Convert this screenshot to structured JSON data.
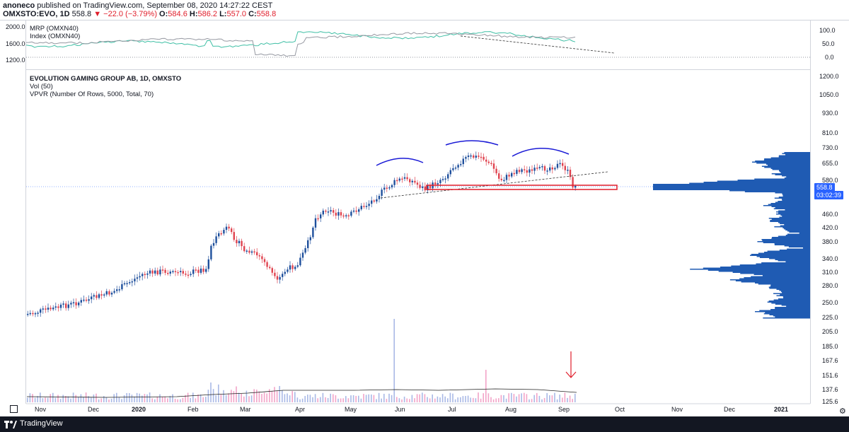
{
  "header": {
    "author": "anoneco",
    "published_text": "published on TradingView.com, September 08, 2020 14:27:22 CEST",
    "symbol": "OMXSTO:EVO, 1D",
    "price": "558.8",
    "change": "▼ −22.0 (−3.79%)",
    "o_label": "O:",
    "o_val": "584.6",
    "h_label": "H:",
    "h_val": "586.2",
    "l_label": "L:",
    "l_val": "557.0",
    "c_label": "C:",
    "c_val": "558.8"
  },
  "top_pane": {
    "legend": [
      "MRP (OMXN40)",
      "Index (OMXN40)"
    ],
    "left_axis": [
      "2000.0",
      "1600.0",
      "1200.0"
    ],
    "right_axis": [
      "100.0",
      "50.0",
      "0.0"
    ]
  },
  "main_pane": {
    "legend": [
      "EVOLUTION GAMING GROUP AB, 1D, OMXSTO",
      "Vol (50)",
      "VPVR (Number Of Rows, 5000, Total, 70)"
    ],
    "right_axis": [
      "1200.0",
      "1050.0",
      "930.0",
      "810.0",
      "730.0",
      "655.0",
      "580.0",
      "460.0",
      "420.0",
      "380.0",
      "340.0",
      "310.0",
      "280.0",
      "250.0",
      "225.0",
      "205.0",
      "185.0",
      "167.6",
      "151.6",
      "137.6",
      "125.6"
    ],
    "price_tag": "558.8",
    "time_tag": "03:02:39"
  },
  "x_axis": [
    "Nov",
    "Dec",
    "2020",
    "Feb",
    "Mar",
    "Apr",
    "May",
    "Jun",
    "Jul",
    "Aug",
    "Sep",
    "Oct",
    "Nov",
    "Dec",
    "2021"
  ],
  "footer": {
    "brand": "TradingView"
  },
  "colors": {
    "up": "#1e4f9c",
    "down": "#e0434f",
    "vpvr": "#1f5bb3",
    "teal": "#3fbfa5",
    "gray": "#9598a1",
    "accent": "#2962ff"
  }
}
